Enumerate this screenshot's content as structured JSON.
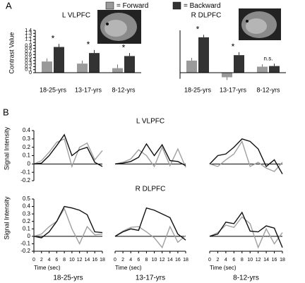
{
  "panels": {
    "a": "A",
    "b": "B"
  },
  "chart_data": [
    {
      "type": "bar",
      "title": "L VLPFC",
      "ylabel": "Contrast Value",
      "categories": [
        "18-25-yrs",
        "13-17-yrs",
        "8-12-yrs"
      ],
      "series": [
        {
          "name": "= Forward",
          "color": "#9a9a9a",
          "values": [
            0.37,
            0.3,
            0.15
          ],
          "errors": [
            0.1,
            0.1,
            0.12
          ]
        },
        {
          "name": "= Backward",
          "color": "#333333",
          "values": [
            0.85,
            0.65,
            0.55
          ],
          "errors": [
            0.1,
            0.1,
            0.1
          ]
        }
      ],
      "annotations": [
        "*",
        "*",
        "*"
      ],
      "ylim": [
        0,
        1.4
      ],
      "yticks": [
        0,
        0.1,
        0.2,
        0.3,
        0.4,
        0.5,
        0.6,
        0.7,
        0.8,
        0.9,
        1,
        1.1,
        1.2,
        1.3,
        1.4
      ]
    },
    {
      "type": "bar",
      "title": "R DLPFC",
      "categories": [
        "18-25-yrs",
        "13-17-yrs",
        "8-12-yrs"
      ],
      "series": [
        {
          "name": "Forward",
          "color": "#9a9a9a",
          "values": [
            0.4,
            -0.15,
            0.2
          ],
          "errors": [
            0.09,
            0.09,
            0.08
          ]
        },
        {
          "name": "Backward",
          "color": "#333333",
          "values": [
            1.17,
            0.58,
            0.22
          ],
          "errors": [
            0.08,
            0.1,
            0.08
          ]
        }
      ],
      "annotations": [
        "*",
        "*",
        "n.s."
      ],
      "ylim": [
        -0.2,
        1.4
      ]
    },
    {
      "type": "line",
      "ylabel": "Signal Intensity",
      "x": [
        0,
        2,
        4,
        6,
        8,
        10,
        12,
        14,
        16,
        18
      ],
      "xlim": [
        0,
        18
      ],
      "series": [
        {
          "color": "#a0a0a0",
          "values": [
            0,
            0.04,
            0.14,
            0.26,
            0.3,
            -0.03,
            0.2,
            0.25,
            0.05,
            0.16
          ]
        },
        {
          "color": "#111111",
          "values": [
            0,
            0.01,
            0.1,
            0.22,
            0.35,
            0.1,
            0.17,
            0.2,
            0.02,
            -0.03
          ]
        }
      ],
      "ylim": [
        -0.2,
        0.4
      ],
      "yticks": [
        -0.2,
        -0.1,
        0,
        0.1,
        0.2,
        0.3,
        0.4
      ]
    },
    {
      "type": "line",
      "title": "L VLPFC",
      "x": [
        0,
        2,
        4,
        6,
        8,
        10,
        12,
        14,
        16,
        18
      ],
      "xlim": [
        0,
        18
      ],
      "series": [
        {
          "color": "#a0a0a0",
          "values": [
            0,
            0.02,
            0.06,
            0.17,
            0.1,
            -0.03,
            0.2,
            -0.02,
            0.18,
            -0.04
          ]
        },
        {
          "color": "#111111",
          "values": [
            0,
            0.01,
            0.03,
            0.08,
            0.24,
            0.1,
            0.23,
            0.04,
            0.03,
            -0.02
          ]
        }
      ],
      "ylim": [
        -0.2,
        0.4
      ]
    },
    {
      "type": "line",
      "x": [
        0,
        2,
        4,
        6,
        8,
        10,
        12,
        14,
        16,
        18
      ],
      "xlim": [
        0,
        18
      ],
      "series": [
        {
          "color": "#a0a0a0",
          "values": [
            0,
            -0.03,
            0.05,
            0.12,
            0.27,
            -0.03,
            0.02,
            -0.05,
            -0.09,
            0.02
          ]
        },
        {
          "color": "#111111",
          "values": [
            0,
            0.1,
            0.12,
            0.2,
            0.3,
            0.27,
            0.18,
            -0.03,
            0.05,
            -0.12
          ]
        }
      ],
      "ylim": [
        -0.2,
        0.4
      ]
    },
    {
      "type": "line",
      "ylabel": "Signal Intensity",
      "xlabel": "Time (sec)",
      "caption": "18-25-yrs",
      "x": [
        0,
        2,
        4,
        6,
        8,
        10,
        12,
        14,
        16,
        18
      ],
      "xlim": [
        0,
        18
      ],
      "xticks": [
        0,
        2,
        4,
        6,
        8,
        10,
        12,
        14,
        16,
        18
      ],
      "series": [
        {
          "color": "#a0a0a0",
          "values": [
            0,
            0.03,
            0.13,
            0.2,
            0.37,
            0.1,
            -0.1,
            0.13,
            0.02,
            0.03
          ]
        },
        {
          "color": "#111111",
          "values": [
            0,
            -0.02,
            0.06,
            0.2,
            0.4,
            0.38,
            0.35,
            0.29,
            0.06,
            0.05
          ]
        }
      ],
      "ylim": [
        -0.2,
        0.5
      ],
      "yticks": [
        -0.2,
        -0.1,
        0,
        0.1,
        0.2,
        0.3,
        0.4,
        0.5
      ]
    },
    {
      "type": "line",
      "title": "R DLPFC",
      "xlabel": "Time (sec)",
      "caption": "13-17-yrs",
      "x": [
        0,
        2,
        4,
        6,
        8,
        10,
        12,
        14,
        16,
        18
      ],
      "xlim": [
        0,
        18
      ],
      "xticks": [
        0,
        2,
        4,
        6,
        8,
        10,
        12,
        14,
        16,
        18
      ],
      "series": [
        {
          "color": "#a0a0a0",
          "values": [
            0,
            0.07,
            0.12,
            0.13,
            0.06,
            -0.02,
            -0.15,
            0.13,
            -0.08,
            0.01
          ]
        },
        {
          "color": "#111111",
          "values": [
            0,
            0.06,
            0.1,
            0.08,
            0.38,
            0.35,
            0.3,
            0.25,
            0.03,
            -0.05
          ]
        }
      ],
      "ylim": [
        -0.2,
        0.5
      ]
    },
    {
      "type": "line",
      "xlabel": "Time (sec)",
      "caption": "8-12-yrs",
      "x": [
        0,
        2,
        4,
        6,
        8,
        10,
        12,
        14,
        16,
        18
      ],
      "xlim": [
        0,
        18
      ],
      "xticks": [
        0,
        2,
        4,
        6,
        8,
        10,
        12,
        14,
        16,
        18
      ],
      "series": [
        {
          "color": "#a0a0a0",
          "values": [
            0,
            0.05,
            0.15,
            0.12,
            0.26,
            0.17,
            -0.15,
            0.1,
            -0.1,
            0.05
          ]
        },
        {
          "color": "#111111",
          "values": [
            0,
            0.03,
            0.19,
            0.17,
            0.32,
            0.07,
            0.06,
            0.14,
            0.11,
            -0.15
          ]
        }
      ],
      "ylim": [
        -0.2,
        0.5
      ]
    }
  ]
}
